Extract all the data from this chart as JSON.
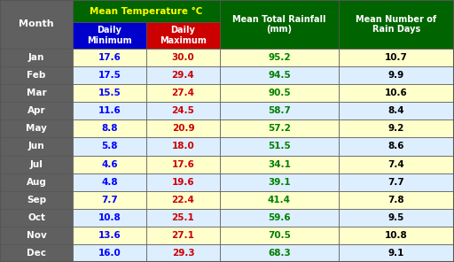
{
  "months": [
    "Jan",
    "Feb",
    "Mar",
    "Apr",
    "May",
    "Jun",
    "Jul",
    "Aug",
    "Sep",
    "Oct",
    "Nov",
    "Dec"
  ],
  "daily_min": [
    17.6,
    17.5,
    15.5,
    11.6,
    8.8,
    5.8,
    4.6,
    4.8,
    7.7,
    10.8,
    13.6,
    16.0
  ],
  "daily_max": [
    30.0,
    29.4,
    27.4,
    24.5,
    20.9,
    18.0,
    17.6,
    19.6,
    22.4,
    25.1,
    27.1,
    29.3
  ],
  "rainfall": [
    95.2,
    94.5,
    90.5,
    58.7,
    57.2,
    51.5,
    34.1,
    39.1,
    41.4,
    59.6,
    70.5,
    68.3
  ],
  "rain_days": [
    10.7,
    9.9,
    10.6,
    8.4,
    9.2,
    8.6,
    7.4,
    7.7,
    7.8,
    9.5,
    10.8,
    9.1
  ],
  "header_bg": "#006400",
  "header_text": "#FFFF00",
  "min_col_bg": "#0000CC",
  "max_col_bg": "#CC0000",
  "sub_header_text": "#FFFFFF",
  "month_col_bg": "#606060",
  "month_col_text": "#FFFFFF",
  "row_bg_odd": "#FFFFCC",
  "row_bg_even": "#DDEEFF",
  "min_val_color": "#0000FF",
  "max_val_color": "#CC0000",
  "rainfall_color": "#008000",
  "rain_days_color": "#000000",
  "border_color": "#555555",
  "fig_bg": "#AAAAAA"
}
